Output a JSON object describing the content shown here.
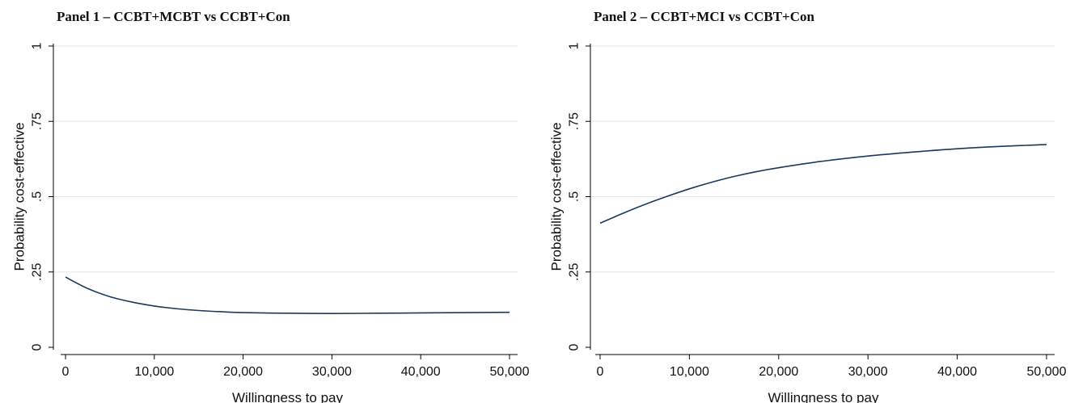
{
  "chart_data": [
    {
      "type": "line",
      "title": "Panel 1 – CCBT+MCBT vs CCBT+Con",
      "xlabel": "Willingness to pay",
      "ylabel": "Probability cost-effective",
      "xlim": [
        0,
        50000
      ],
      "ylim": [
        0,
        1
      ],
      "xticks": [
        0,
        10000,
        20000,
        30000,
        40000,
        50000
      ],
      "xtick_labels": [
        "0",
        "10,000",
        "20,000",
        "30,000",
        "40,000",
        "50,000"
      ],
      "yticks": [
        0,
        0.25,
        0.5,
        0.75,
        1
      ],
      "ytick_labels": [
        "0",
        ".25",
        ".5",
        ".75",
        "1"
      ],
      "grid": true,
      "line_color": "#1a3a5c",
      "x": [
        0,
        2500,
        5000,
        7500,
        10000,
        12500,
        15000,
        17500,
        20000,
        25000,
        30000,
        35000,
        40000,
        45000,
        50000
      ],
      "values": [
        0.233,
        0.195,
        0.168,
        0.15,
        0.137,
        0.128,
        0.122,
        0.118,
        0.115,
        0.113,
        0.112,
        0.113,
        0.114,
        0.115,
        0.116
      ]
    },
    {
      "type": "line",
      "title": "Panel 2 – CCBT+MCI vs CCBT+Con",
      "xlabel": "Willingness to pay",
      "ylabel": "Probability cost-effective",
      "xlim": [
        0,
        50000
      ],
      "ylim": [
        0,
        1
      ],
      "xticks": [
        0,
        10000,
        20000,
        30000,
        40000,
        50000
      ],
      "xtick_labels": [
        "0",
        "10,000",
        "20,000",
        "30,000",
        "40,000",
        "50,000"
      ],
      "yticks": [
        0,
        0.25,
        0.5,
        0.75,
        1
      ],
      "ytick_labels": [
        "0",
        ".25",
        ".5",
        ".75",
        "1"
      ],
      "grid": true,
      "line_color": "#1a3a5c",
      "x": [
        0,
        2500,
        5000,
        7500,
        10000,
        12500,
        15000,
        17500,
        20000,
        25000,
        30000,
        35000,
        40000,
        45000,
        50000
      ],
      "values": [
        0.412,
        0.444,
        0.474,
        0.501,
        0.526,
        0.548,
        0.567,
        0.583,
        0.596,
        0.618,
        0.635,
        0.648,
        0.659,
        0.667,
        0.673
      ]
    }
  ]
}
